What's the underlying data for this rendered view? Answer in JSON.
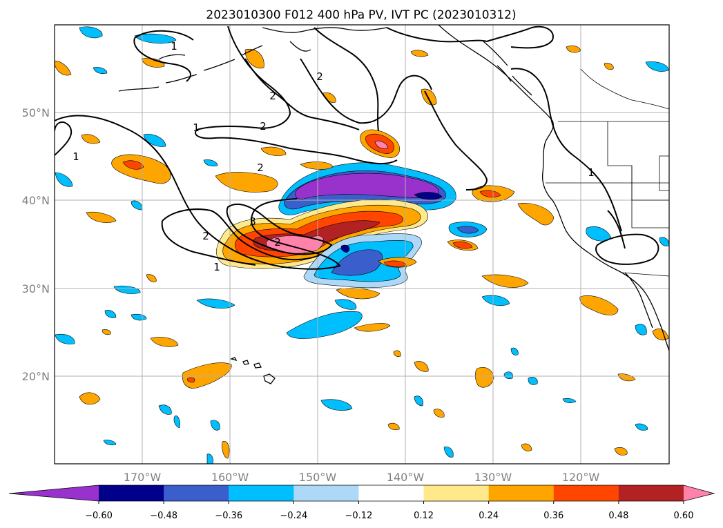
{
  "title": "2023010300 F012 400 hPa PV, IVT PC (2023010312)",
  "map": {
    "lon_labels": [
      "170°W",
      "160°W",
      "150°W",
      "140°W",
      "130°W",
      "120°W"
    ],
    "lat_labels": [
      "50°N",
      "40°N",
      "30°N",
      "20°N"
    ],
    "contour_labels": [
      "1",
      "2",
      "2",
      "1",
      "2",
      "2",
      "1",
      "2",
      "3",
      "2",
      "1",
      "1"
    ]
  },
  "colorbar": {
    "ticks": [
      "−0.60",
      "−0.48",
      "−0.36",
      "−0.24",
      "−0.12",
      "0.12",
      "0.24",
      "0.36",
      "0.48",
      "0.60"
    ],
    "colors": [
      "#9932cc",
      "#00008b",
      "#3a5fcd",
      "#00bfff",
      "#add8f7",
      "#ffffff",
      "#ffe98a",
      "#ffa500",
      "#ff4500",
      "#b22222",
      "#ff82ab"
    ]
  },
  "chart_data": {
    "type": "heatmap",
    "title": "2023010300 F012 400 hPa PV, IVT PC (2023010312)",
    "fields": [
      "400 hPa PV (contours)",
      "IVT PC (shaded)"
    ],
    "contour_levels": [
      1,
      2,
      3
    ],
    "shading_bounds": [
      -0.6,
      -0.48,
      -0.36,
      -0.24,
      -0.12,
      0.12,
      0.24,
      0.36,
      0.48,
      0.6
    ],
    "colorbar_extend": "both",
    "lon_range": [
      "180°",
      "110°W"
    ],
    "lat_range": [
      "10°N",
      "60°N"
    ],
    "grid": true
  }
}
